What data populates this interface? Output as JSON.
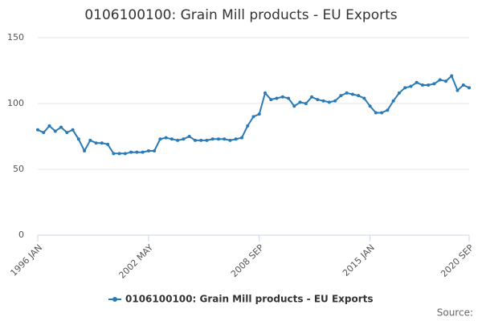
{
  "chart_data": {
    "type": "line",
    "title": "0106100100: Grain Mill products - EU Exports",
    "source": "Source:",
    "categories": [
      "1996 JAN",
      null,
      null,
      null,
      null,
      null,
      null,
      null,
      null,
      null,
      null,
      null,
      null,
      null,
      null,
      null,
      null,
      null,
      null,
      "2002 MAY",
      null,
      null,
      null,
      null,
      null,
      null,
      null,
      null,
      null,
      null,
      null,
      null,
      null,
      null,
      null,
      null,
      null,
      null,
      "2008 SEP",
      null,
      null,
      null,
      null,
      null,
      null,
      null,
      null,
      null,
      null,
      null,
      null,
      null,
      null,
      null,
      null,
      null,
      null,
      "2015 JAN",
      null,
      null,
      null,
      null,
      null,
      null,
      null,
      null,
      null,
      null,
      null,
      null,
      null,
      null,
      null,
      null,
      "2020 SEP"
    ],
    "series": [
      {
        "name": "0106100100: Grain Mill products - EU Exports",
        "color": "#2a7ab5",
        "values": [
          80,
          78,
          83,
          79,
          82,
          78,
          80,
          73,
          64,
          72,
          70,
          70,
          69,
          62,
          62,
          62,
          63,
          63,
          63,
          64,
          64,
          73,
          74,
          73,
          72,
          73,
          75,
          72,
          72,
          72,
          73,
          73,
          73,
          72,
          73,
          74,
          83,
          90,
          92,
          108,
          103,
          104,
          105,
          104,
          98,
          101,
          100,
          105,
          103,
          102,
          101,
          102,
          106,
          108,
          107,
          106,
          104,
          98,
          93,
          93,
          95,
          102,
          108,
          112,
          113,
          116,
          114,
          114,
          115,
          118,
          117,
          121,
          110,
          114,
          112
        ]
      }
    ],
    "ylim": [
      0,
      150
    ],
    "yticks": [
      0,
      50,
      100,
      150
    ],
    "grid": true
  }
}
